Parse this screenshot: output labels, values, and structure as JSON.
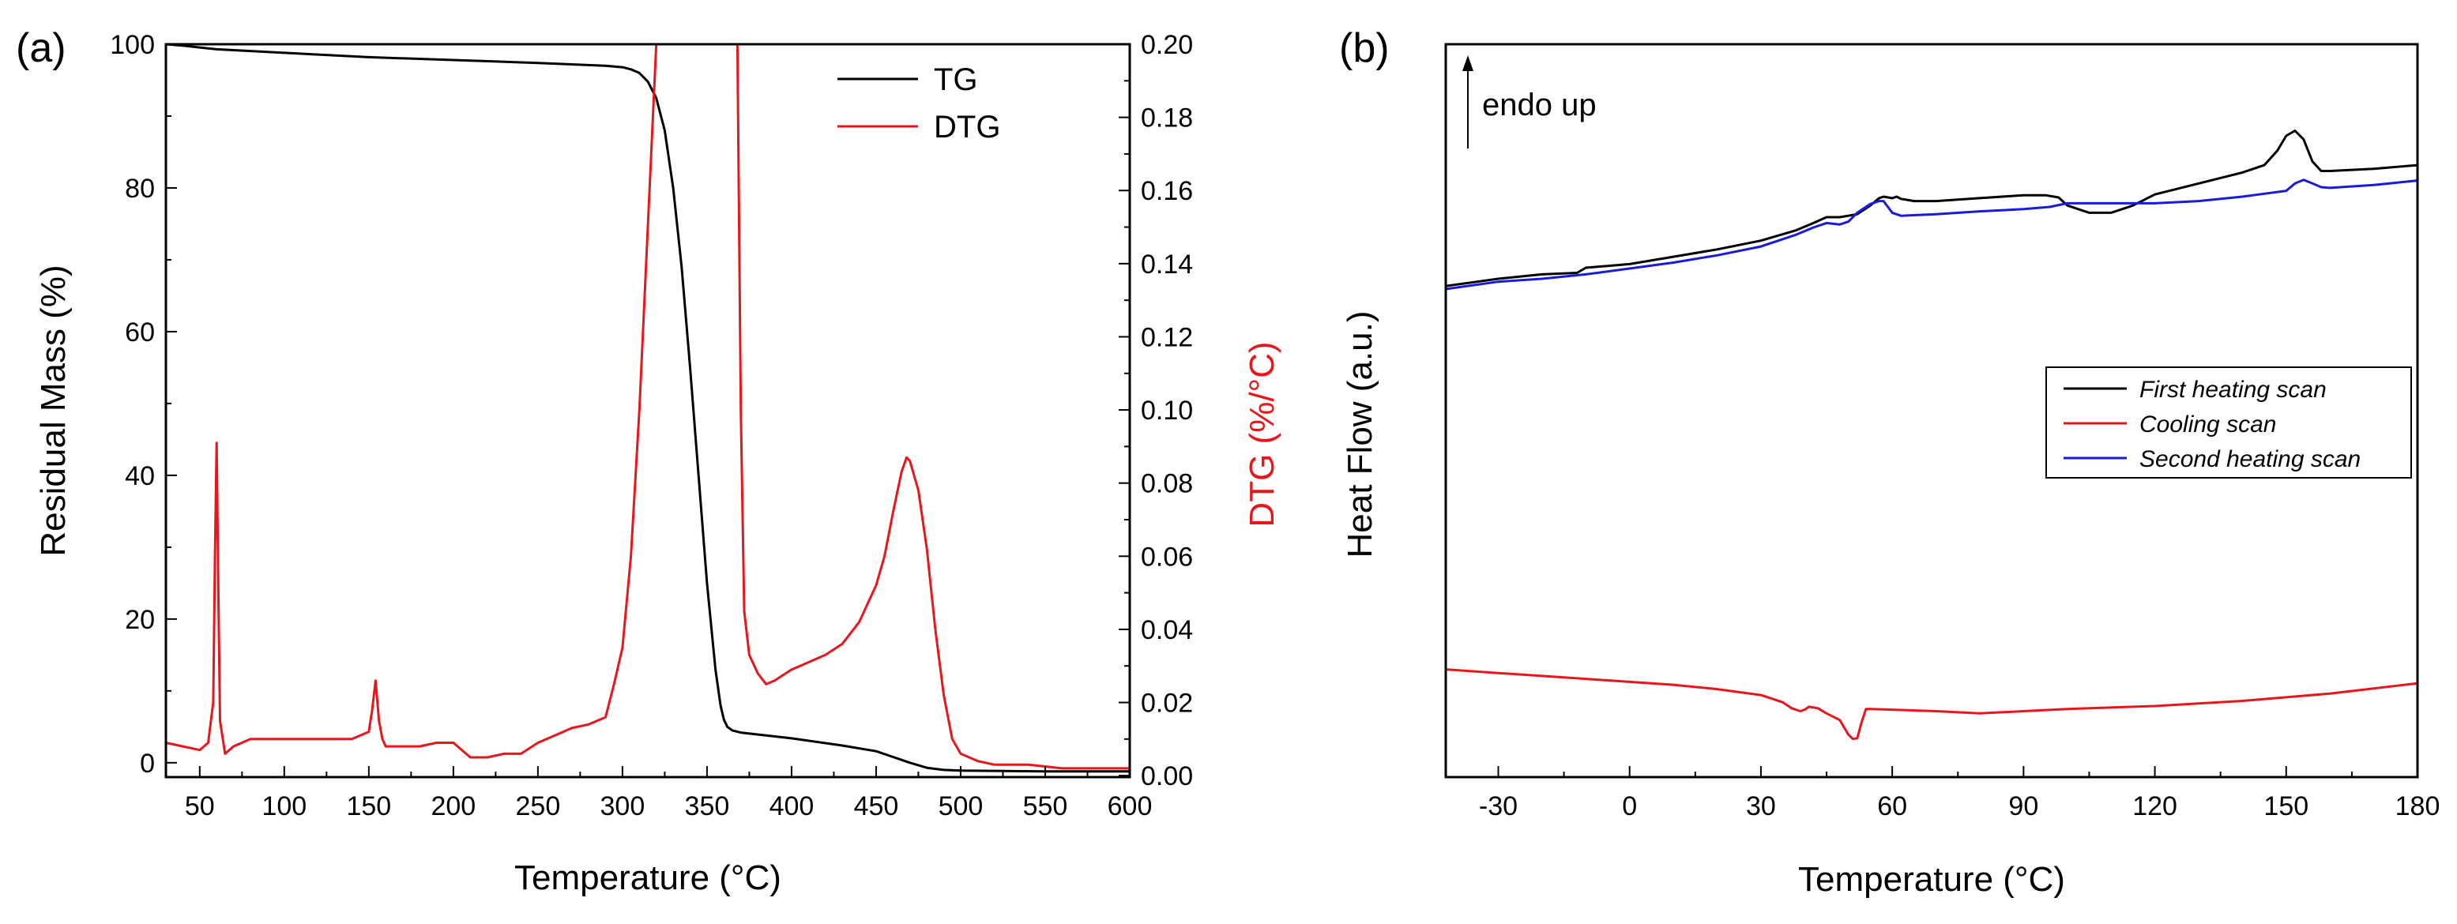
{
  "chart_data": [
    {
      "panel_label": "(a)",
      "type": "line",
      "xlabel": "Temperature (°C)",
      "ylabel": "Residual Mass (%)",
      "y2label": "DTG (%/°C)",
      "xlim": [
        30,
        600
      ],
      "ylim": [
        -2,
        100
      ],
      "y2lim": [
        -0.0004,
        0.2
      ],
      "x_ticks": [
        50,
        100,
        150,
        200,
        250,
        300,
        350,
        400,
        450,
        500,
        550,
        600
      ],
      "y_ticks": [
        0,
        20,
        40,
        60,
        80,
        100
      ],
      "y2_ticks": [
        0.0,
        0.02,
        0.04,
        0.06,
        0.08,
        0.1,
        0.12,
        0.14,
        0.16,
        0.18,
        0.2
      ],
      "y2_tick_labels": [
        "0.00",
        "0.02",
        "0.04",
        "0.06",
        "0.08",
        "0.10",
        "0.12",
        "0.14",
        "0.16",
        "0.18",
        "0.20"
      ],
      "legend": [
        "TG",
        "DTG"
      ],
      "legend_position": "top-right",
      "series": [
        {
          "name": "TG",
          "axis": "left",
          "color": "#000000",
          "x": [
            30,
            40,
            60,
            100,
            150,
            200,
            250,
            290,
            300,
            305,
            310,
            315,
            320,
            325,
            330,
            335,
            340,
            345,
            350,
            355,
            358,
            360,
            362,
            365,
            370,
            400,
            430,
            450,
            460,
            470,
            480,
            490,
            500,
            550,
            600
          ],
          "y": [
            100,
            99.8,
            99.3,
            98.8,
            98.2,
            97.8,
            97.4,
            97.0,
            96.8,
            96.5,
            96.0,
            94.8,
            92.5,
            88.0,
            80.0,
            69.0,
            55.0,
            40.0,
            25.0,
            13.0,
            8.0,
            6.0,
            5.0,
            4.5,
            4.2,
            3.4,
            2.4,
            1.6,
            0.8,
            0.0,
            -0.7,
            -1.0,
            -1.1,
            -1.2,
            -1.2
          ]
        },
        {
          "name": "DTG",
          "axis": "right",
          "color": "#e8161b",
          "x": [
            30,
            40,
            50,
            55,
            58,
            59,
            60,
            61,
            62,
            65,
            70,
            80,
            100,
            120,
            140,
            150,
            152,
            154,
            156,
            158,
            160,
            170,
            180,
            190,
            200,
            210,
            220,
            230,
            240,
            250,
            260,
            270,
            280,
            290,
            295,
            300,
            305,
            310,
            315,
            318,
            320,
            368,
            370,
            372,
            375,
            380,
            385,
            390,
            400,
            410,
            420,
            430,
            440,
            450,
            455,
            460,
            465,
            468,
            470,
            475,
            480,
            485,
            490,
            495,
            500,
            510,
            520,
            540,
            560,
            580,
            600
          ],
          "y": [
            0.009,
            0.008,
            0.007,
            0.009,
            0.02,
            0.06,
            0.091,
            0.05,
            0.015,
            0.006,
            0.008,
            0.01,
            0.01,
            0.01,
            0.01,
            0.012,
            0.018,
            0.026,
            0.015,
            0.01,
            0.008,
            0.008,
            0.008,
            0.009,
            0.009,
            0.005,
            0.005,
            0.006,
            0.006,
            0.009,
            0.011,
            0.013,
            0.014,
            0.016,
            0.025,
            0.035,
            0.06,
            0.1,
            0.15,
            0.18,
            0.2,
            0.2,
            0.1,
            0.045,
            0.033,
            0.028,
            0.025,
            0.026,
            0.029,
            0.031,
            0.033,
            0.036,
            0.042,
            0.052,
            0.06,
            0.072,
            0.083,
            0.087,
            0.086,
            0.078,
            0.062,
            0.04,
            0.022,
            0.01,
            0.006,
            0.004,
            0.003,
            0.003,
            0.002,
            0.002,
            0.002
          ]
        }
      ]
    },
    {
      "panel_label": "(b)",
      "type": "line",
      "xlabel": "Temperature (°C)",
      "ylabel": "Heat Flow (a.u.)",
      "xlim": [
        -42,
        180
      ],
      "ylim": [
        0,
        100
      ],
      "x_ticks": [
        -30,
        0,
        30,
        60,
        90,
        120,
        150,
        180
      ],
      "annotation": "endo up",
      "legend": [
        "First heating scan",
        "Cooling scan",
        "Second heating scan"
      ],
      "legend_position": "center-right",
      "series": [
        {
          "name": "First heating scan",
          "color": "#000000",
          "x": [
            -42,
            -30,
            -20,
            -12,
            -10,
            0,
            10,
            20,
            30,
            38,
            42,
            45,
            48,
            52,
            55,
            57,
            58,
            60,
            61,
            62,
            65,
            70,
            80,
            90,
            95,
            98,
            100,
            105,
            110,
            115,
            120,
            130,
            140,
            145,
            148,
            150,
            152,
            154,
            156,
            158,
            160,
            170,
            180
          ],
          "y": [
            67.0,
            68.0,
            68.6,
            68.8,
            69.5,
            70.0,
            71.0,
            72.0,
            73.2,
            74.6,
            75.6,
            76.4,
            76.4,
            76.8,
            78.0,
            79.0,
            79.2,
            79.0,
            79.2,
            78.9,
            78.6,
            78.6,
            79.0,
            79.4,
            79.4,
            79.1,
            78.0,
            77.0,
            77.0,
            78.0,
            79.5,
            81.0,
            82.5,
            83.5,
            85.5,
            87.5,
            88.2,
            87.0,
            84.0,
            82.7,
            82.7,
            83.0,
            83.5
          ]
        },
        {
          "name": "Cooling scan",
          "color": "#e8161b",
          "x": [
            -42,
            -30,
            -20,
            -10,
            0,
            10,
            20,
            30,
            35,
            37,
            39,
            40,
            41,
            43,
            45,
            48,
            50,
            51,
            52,
            53,
            54,
            55,
            60,
            70,
            80,
            90,
            100,
            120,
            140,
            160,
            180
          ],
          "y": [
            14.7,
            14.2,
            13.8,
            13.4,
            13.0,
            12.6,
            12.0,
            11.2,
            10.2,
            9.4,
            9.0,
            9.2,
            9.6,
            9.4,
            8.7,
            7.8,
            5.8,
            5.2,
            5.3,
            7.5,
            9.3,
            9.3,
            9.2,
            9.0,
            8.7,
            9.0,
            9.3,
            9.7,
            10.4,
            11.4,
            12.8
          ]
        },
        {
          "name": "Second heating scan",
          "color": "#1a1adb",
          "x": [
            -42,
            -30,
            -20,
            -10,
            0,
            10,
            20,
            30,
            38,
            42,
            45,
            48,
            50,
            52,
            55,
            57,
            58,
            60,
            62,
            70,
            80,
            90,
            96,
            100,
            110,
            120,
            130,
            140,
            145,
            150,
            152,
            154,
            156,
            158,
            160,
            170,
            180
          ],
          "y": [
            66.6,
            67.6,
            68.0,
            68.6,
            69.4,
            70.2,
            71.2,
            72.4,
            74.0,
            75.0,
            75.6,
            75.4,
            75.8,
            77.0,
            78.2,
            78.6,
            78.6,
            77.0,
            76.6,
            76.8,
            77.2,
            77.5,
            77.8,
            78.3,
            78.3,
            78.3,
            78.6,
            79.2,
            79.6,
            80.0,
            81.0,
            81.5,
            81.0,
            80.5,
            80.4,
            80.8,
            81.4
          ]
        }
      ]
    }
  ]
}
